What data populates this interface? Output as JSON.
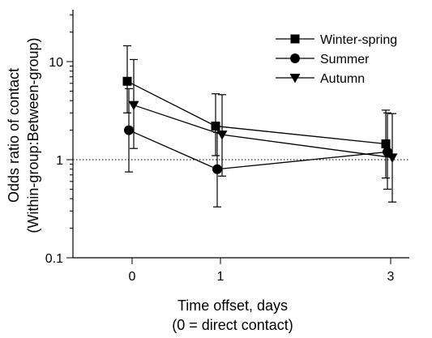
{
  "chart_data": {
    "type": "line",
    "title": "",
    "xlabel_line1": "Time offset, days",
    "xlabel_line2": "(0 = direct contact)",
    "ylabel_line1": "Odds ratio of contact",
    "ylabel_line2": "(Within-group:Between-group)",
    "y_scale": "log",
    "ylim": [
      0.1,
      30
    ],
    "x_categories": [
      0,
      1,
      3
    ],
    "x_tick_labels": [
      "0",
      "1",
      "3"
    ],
    "y_ticks": [
      0.1,
      1,
      10
    ],
    "y_tick_labels": [
      "0.1",
      "1",
      "10"
    ],
    "reference_line": {
      "y": 1,
      "style": "dotted"
    },
    "legend_position": "top-right",
    "series": [
      {
        "name": "Winter-spring",
        "marker": "square",
        "values": [
          6.3,
          2.2,
          1.45
        ],
        "err_low": [
          3.0,
          1.1,
          0.65
        ],
        "err_high": [
          14.5,
          4.7,
          3.2
        ]
      },
      {
        "name": "Summer",
        "marker": "circle",
        "values": [
          2.0,
          0.8,
          1.2
        ],
        "err_low": [
          0.75,
          0.33,
          0.5
        ],
        "err_high": [
          5.3,
          1.9,
          3.0
        ]
      },
      {
        "name": "Autumn",
        "marker": "triangle-down",
        "values": [
          3.6,
          1.8,
          1.05
        ],
        "err_low": [
          1.3,
          0.68,
          0.37
        ],
        "err_high": [
          10.5,
          4.6,
          2.95
        ]
      }
    ]
  }
}
